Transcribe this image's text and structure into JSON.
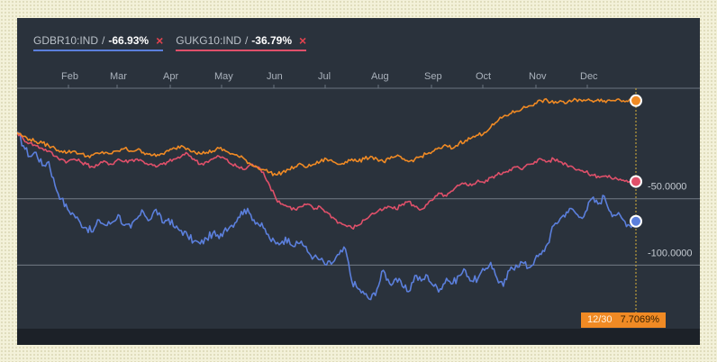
{
  "legend": {
    "items": [
      {
        "name": "GDBR10:IND",
        "sep": "/",
        "change": "-66.93%",
        "close": "×",
        "color": "#5b7fdc"
      },
      {
        "name": "GUKG10:IND",
        "sep": "/",
        "change": "-36.79%",
        "close": "×",
        "color": "#e0506a"
      }
    ]
  },
  "readout": {
    "date": "12/30",
    "value": "7.7069%"
  },
  "chart_data": {
    "type": "line",
    "x_ticks": [
      "Feb",
      "Mar",
      "Apr",
      "May",
      "Jun",
      "Jul",
      "Aug",
      "Sep",
      "Oct",
      "Nov",
      "Dec"
    ],
    "y_ticks": [
      "-50.0000",
      "-100.0000"
    ],
    "ylim": [
      -148,
      32
    ],
    "grid": true,
    "series": [
      {
        "name": "GDBR10:IND",
        "color": "#5b7fdc",
        "values": [
          0,
          -10,
          -18,
          -15,
          -25,
          -22,
          -40,
          -50,
          -58,
          -62,
          -68,
          -72,
          -75,
          -66,
          -70,
          -68,
          -62,
          -70,
          -72,
          -65,
          -60,
          -66,
          -58,
          -68,
          -65,
          -72,
          -74,
          -78,
          -82,
          -84,
          -80,
          -76,
          -80,
          -72,
          -70,
          -64,
          -58,
          -62,
          -68,
          -72,
          -80,
          -84,
          -82,
          -80,
          -86,
          -82,
          -90,
          -94,
          -96,
          -100,
          -98,
          -92,
          -88,
          -112,
          -118,
          -122,
          -126,
          -118,
          -104,
          -114,
          -110,
          -116,
          -120,
          -108,
          -112,
          -108,
          -116,
          -118,
          -110,
          -114,
          -108,
          -104,
          -112,
          -110,
          -104,
          -98,
          -110,
          -116,
          -104,
          -100,
          -98,
          -102,
          -96,
          -92,
          -84,
          -70,
          -65,
          -60,
          -58,
          -64,
          -60,
          -50,
          -54,
          -48,
          -60,
          -62,
          -66,
          -70,
          -67
        ]
      },
      {
        "name": "GUKG10:IND",
        "color": "#e0506a",
        "values": [
          0,
          -5,
          -8,
          -10,
          -12,
          -14,
          -18,
          -20,
          -22,
          -20,
          -22,
          -24,
          -26,
          -24,
          -22,
          -24,
          -20,
          -22,
          -21,
          -20,
          -22,
          -24,
          -26,
          -24,
          -22,
          -20,
          -18,
          -16,
          -20,
          -24,
          -22,
          -20,
          -18,
          -20,
          -24,
          -26,
          -28,
          -24,
          -26,
          -30,
          -40,
          -50,
          -54,
          -56,
          -58,
          -56,
          -54,
          -58,
          -56,
          -60,
          -64,
          -68,
          -70,
          -72,
          -70,
          -66,
          -62,
          -60,
          -58,
          -56,
          -58,
          -54,
          -52,
          -56,
          -58,
          -54,
          -50,
          -46,
          -48,
          -44,
          -40,
          -38,
          -40,
          -36,
          -38,
          -34,
          -32,
          -30,
          -28,
          -26,
          -28,
          -24,
          -22,
          -20,
          -22,
          -20,
          -22,
          -24,
          -26,
          -28,
          -30,
          -32,
          -33,
          -33,
          -34,
          -35,
          -36,
          -37,
          -37
        ]
      },
      {
        "name": "",
        "color": "#f08a24",
        "values": [
          0,
          -3,
          -5,
          -7,
          -8,
          -10,
          -12,
          -14,
          -15,
          -14,
          -16,
          -18,
          -17,
          -16,
          -15,
          -16,
          -14,
          -12,
          -14,
          -13,
          -15,
          -16,
          -18,
          -16,
          -14,
          -12,
          -10,
          -12,
          -14,
          -16,
          -15,
          -14,
          -12,
          -14,
          -16,
          -18,
          -20,
          -24,
          -26,
          -28,
          -30,
          -32,
          -30,
          -28,
          -26,
          -24,
          -26,
          -24,
          -22,
          -20,
          -22,
          -24,
          -22,
          -20,
          -22,
          -20,
          -18,
          -20,
          -22,
          -20,
          -18,
          -20,
          -22,
          -20,
          -18,
          -16,
          -14,
          -12,
          -10,
          -12,
          -8,
          -6,
          -4,
          -2,
          0,
          4,
          8,
          12,
          14,
          16,
          18,
          20,
          22,
          24,
          24,
          22,
          24,
          22,
          24,
          25,
          24,
          24,
          25,
          24,
          24,
          25,
          24,
          25,
          24
        ]
      }
    ]
  }
}
